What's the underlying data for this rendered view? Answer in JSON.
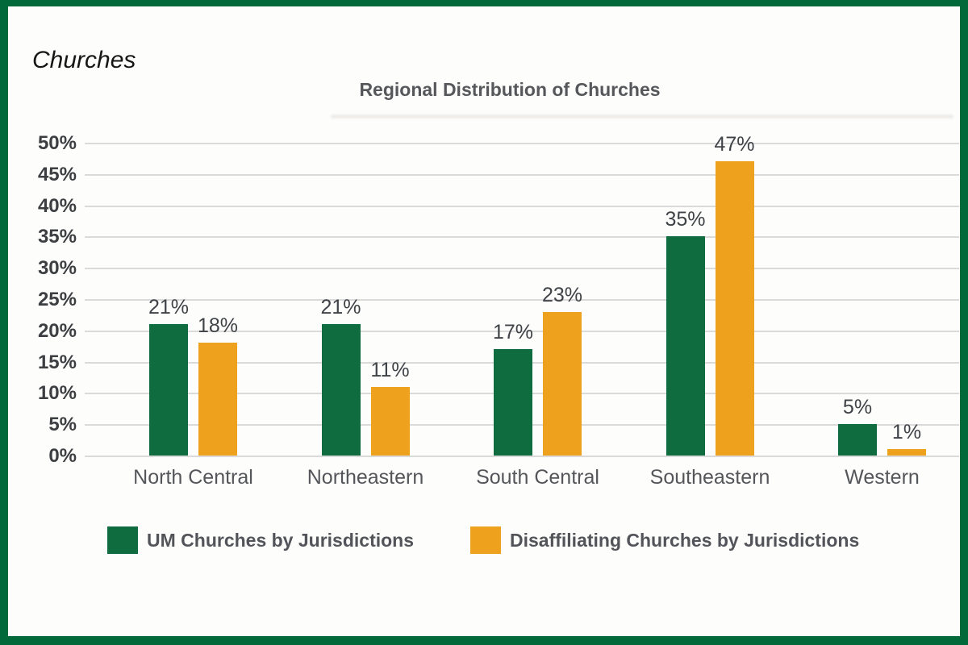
{
  "page": {
    "corner_label": "Churches"
  },
  "colors": {
    "frame_border": "#02693A",
    "gridline": "#DADADA",
    "title_text": "#56575B",
    "axis_text": "#3C3E41",
    "um_green": "#0E6C3F",
    "disaffiliating_orange": "#EEA11D"
  },
  "chart_data": {
    "type": "bar",
    "title": "Regional Distribution of Churches",
    "categories": [
      "North Central",
      "Northeastern",
      "South Central",
      "Southeastern",
      "Western"
    ],
    "series": [
      {
        "name": "UM Churches by Jurisdictions",
        "color": "#0E6C3F",
        "values": [
          21,
          21,
          17,
          35,
          5
        ],
        "labels": [
          "21%",
          "21%",
          "17%",
          "35%",
          "5%"
        ]
      },
      {
        "name": "Disaffiliating Churches by Jurisdictions",
        "color": "#EEA11D",
        "values": [
          18,
          11,
          23,
          47,
          1
        ],
        "labels": [
          "18%",
          "11%",
          "23%",
          "47%",
          "1%"
        ]
      }
    ],
    "ylim": [
      0,
      50
    ],
    "ytick_step": 5,
    "ytick_labels": [
      "50%",
      "45%",
      "40%",
      "35%",
      "30%",
      "25%",
      "20%",
      "15%",
      "10%",
      "5%",
      "0%"
    ],
    "xlabel": "",
    "ylabel": "",
    "grid": true,
    "legend_position": "bottom"
  }
}
